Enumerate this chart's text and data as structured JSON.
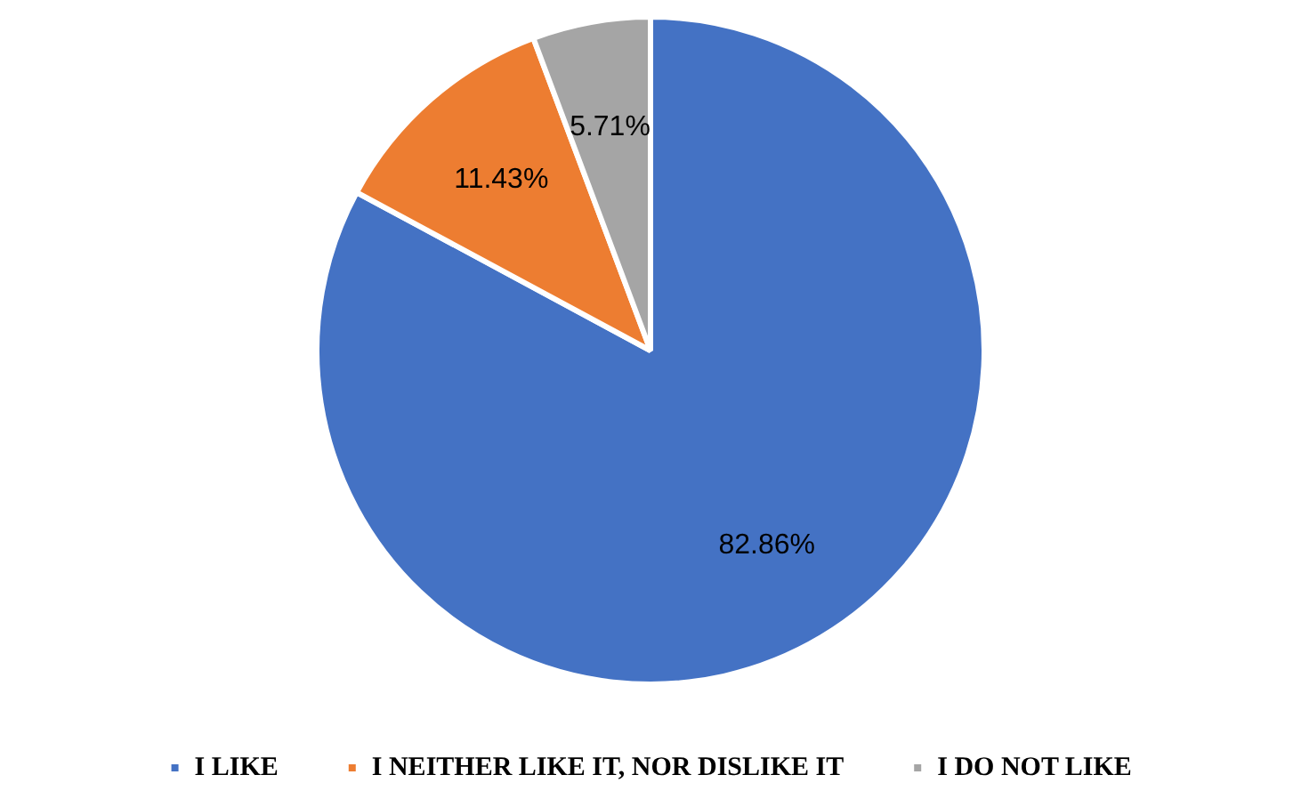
{
  "chart_data": {
    "type": "pie",
    "categories": [
      "I LIKE",
      "I NEITHER LIKE IT, NOR DISLIKE IT",
      "I DO NOT LIKE"
    ],
    "values": [
      82.86,
      11.43,
      5.71
    ],
    "colors": [
      "#4472c4",
      "#ed7d31",
      "#a5a5a5"
    ],
    "value_labels": [
      "82.86%",
      "11.43%",
      "5.71%"
    ],
    "legend": "bottom"
  }
}
